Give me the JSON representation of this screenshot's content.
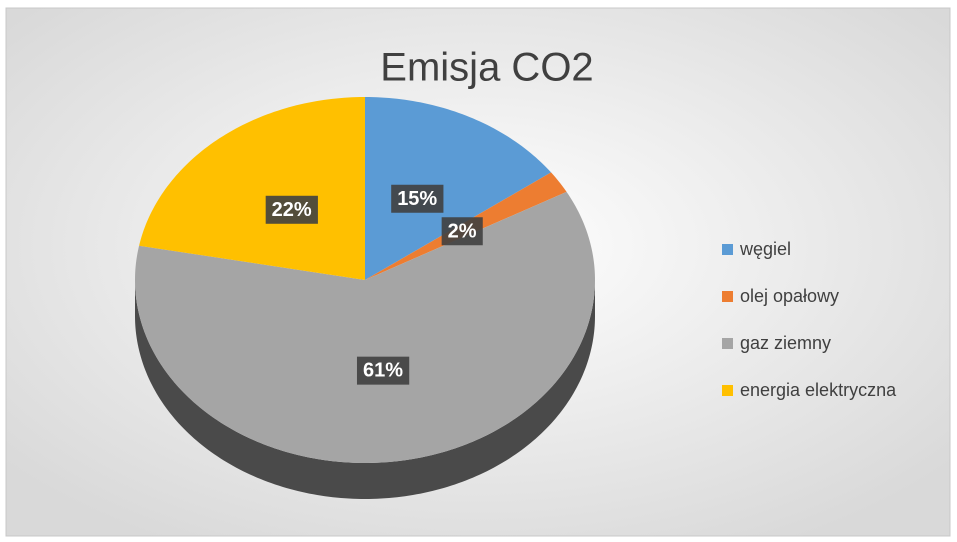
{
  "chart_data": {
    "type": "pie",
    "title": "Emisja CO2",
    "categories": [
      "węgiel",
      "olej opałowy",
      "gaz ziemny",
      "energia elektryczna"
    ],
    "values": [
      15,
      2,
      61,
      22
    ],
    "value_labels": [
      "15%",
      "2%",
      "61%",
      "22%"
    ],
    "colors": [
      "#5b9bd5",
      "#ed7d31",
      "#a5a5a5",
      "#ffc000"
    ],
    "legend": "right"
  }
}
